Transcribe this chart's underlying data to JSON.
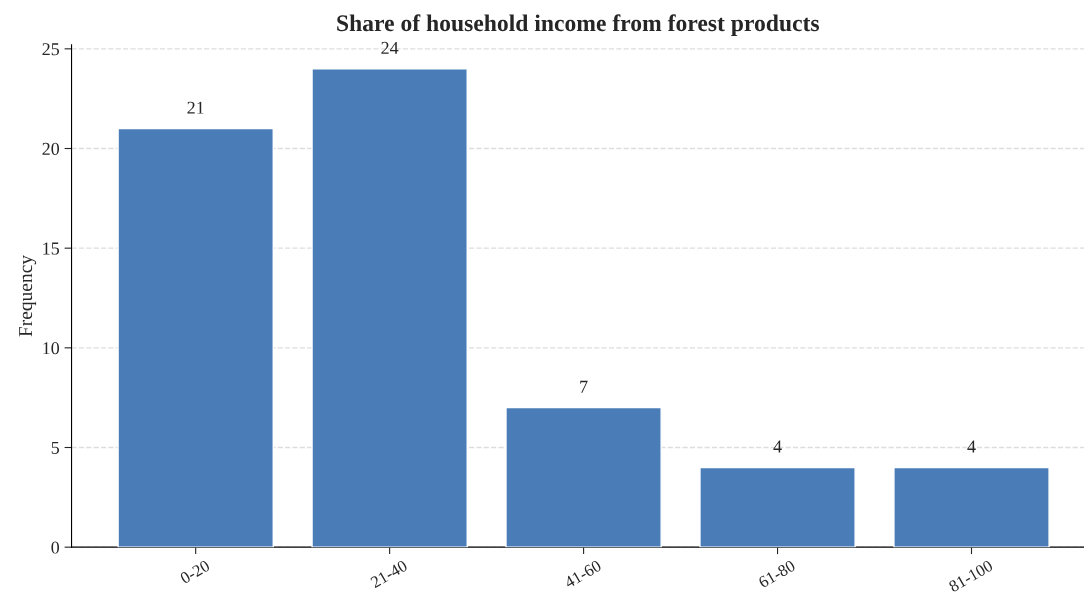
{
  "chart_data": {
    "type": "bar",
    "title": "Share of household income from forest products",
    "ylabel": "Frequency",
    "categories": [
      "0-20",
      "21-40",
      "41-60",
      "61-80",
      "81-100"
    ],
    "values": [
      21,
      24,
      7,
      4,
      4
    ],
    "color": "#4a7db8",
    "ylim": [
      0,
      25.2
    ],
    "yticks": [
      0,
      5,
      10,
      15,
      20,
      25
    ],
    "grid": "y",
    "data_labels": true
  }
}
